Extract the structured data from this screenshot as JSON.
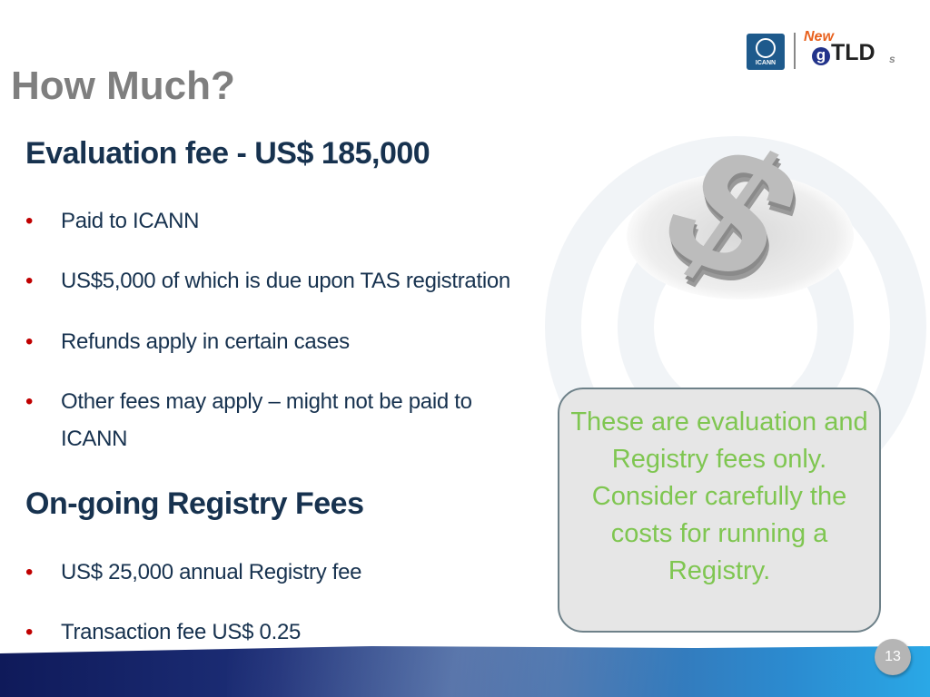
{
  "slide": {
    "title": "How Much?",
    "page_number": "13",
    "logo": {
      "org": "ICANN",
      "brand_new": "New",
      "brand_g": "g",
      "brand_tld": "TLD",
      "brand_s": "s"
    },
    "sections": [
      {
        "heading": "Evaluation fee - US$ 185,000",
        "bullets": [
          "Paid to ICANN",
          "US$5,000 of which is due upon TAS registration",
          "Refunds apply in certain cases",
          "Other fees may apply – might not be paid to ICANN"
        ]
      },
      {
        "heading": "On-going Registry Fees",
        "bullets": [
          "US$ 25,000 annual Registry fee",
          "Transaction fee US$ 0.25"
        ]
      }
    ],
    "callout": "These are evaluation and Registry fees only. Consider carefully the costs for running a Registry.",
    "dollar_glyph": "$",
    "bullet_glyph": "•",
    "colors": {
      "title": "#7f7f7f",
      "heading": "#17324f",
      "bullet": "#c00000",
      "callout_text": "#7fc651"
    }
  }
}
